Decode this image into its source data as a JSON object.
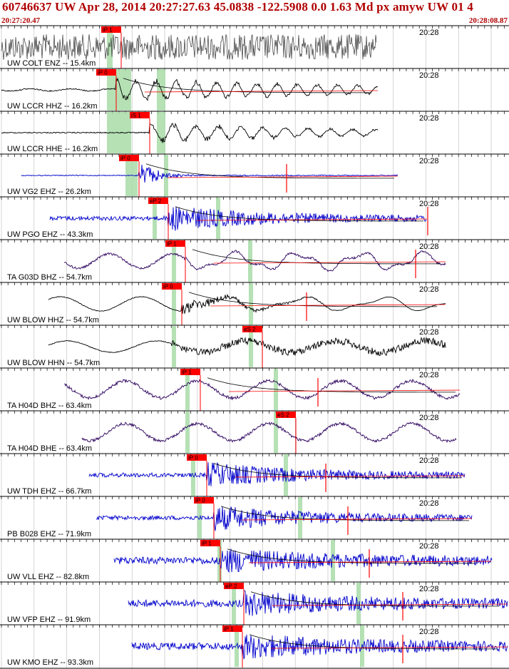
{
  "header": {
    "title": "60746637 UW Apr 28, 2014 20:27:27.63    45.0838 -122.5908  0.0 1.63 Md px amyw UW 01    4",
    "start_time": "20:27:20.47",
    "end_time": "20:28:08.87"
  },
  "colors": {
    "header_text": "#b00000",
    "pick_flag": "#ff0000",
    "coda_fit": "#000000",
    "theoretical_arrival": "#a8dca8",
    "trace_blue": "#0000cc",
    "trace_black": "#000000",
    "trace_purple": "#2b005c",
    "trace_gray": "#333333"
  },
  "time_label": "20:28",
  "traces": [
    {
      "label": "UW COLT ENZ -- 15.4km",
      "pick": "iP 1",
      "color": "gray"
    },
    {
      "label": "UW LCCR HHZ -- 16.2km",
      "pick": "iP 0",
      "color": "black"
    },
    {
      "label": "UW LCCR HHE -- 16.2km",
      "pick": "iS 1",
      "color": "black"
    },
    {
      "label": "UW VG2 EHZ -- 26.2km",
      "pick": "iP 0",
      "color": "blue"
    },
    {
      "label": "UW PGO EHZ -- 43.3km",
      "pick": "eP 2",
      "color": "blue"
    },
    {
      "label": "TA G03D BHZ -- 54.7km",
      "pick": "iP 1",
      "color": "purple"
    },
    {
      "label": "UW BLOW HHZ -- 54.7km",
      "pick": "iP 0",
      "color": "black"
    },
    {
      "label": "UW BLOW HHN -- 54.7km",
      "pick": "eS 2",
      "color": "black"
    },
    {
      "label": "TA H04D BHZ -- 63.4km",
      "pick": "iP 1",
      "color": "purple"
    },
    {
      "label": "TA H04D BHE -- 63.4km",
      "pick": "eS 2",
      "color": "purple"
    },
    {
      "label": "UW TDH EHZ -- 66.7km",
      "pick": "iP 0",
      "color": "blue"
    },
    {
      "label": "PB B028 EHZ -- 71.9km",
      "pick": "iP 0",
      "color": "blue"
    },
    {
      "label": "UW VLL EHZ -- 82.8km",
      "pick": "iP 1",
      "color": "blue"
    },
    {
      "label": "UW VFP EHZ -- 91.9km",
      "pick": "eP 2",
      "color": "blue"
    },
    {
      "label": "UW KMO EHZ -- 93.3km",
      "pick": "iP 1",
      "color": "blue"
    }
  ]
}
